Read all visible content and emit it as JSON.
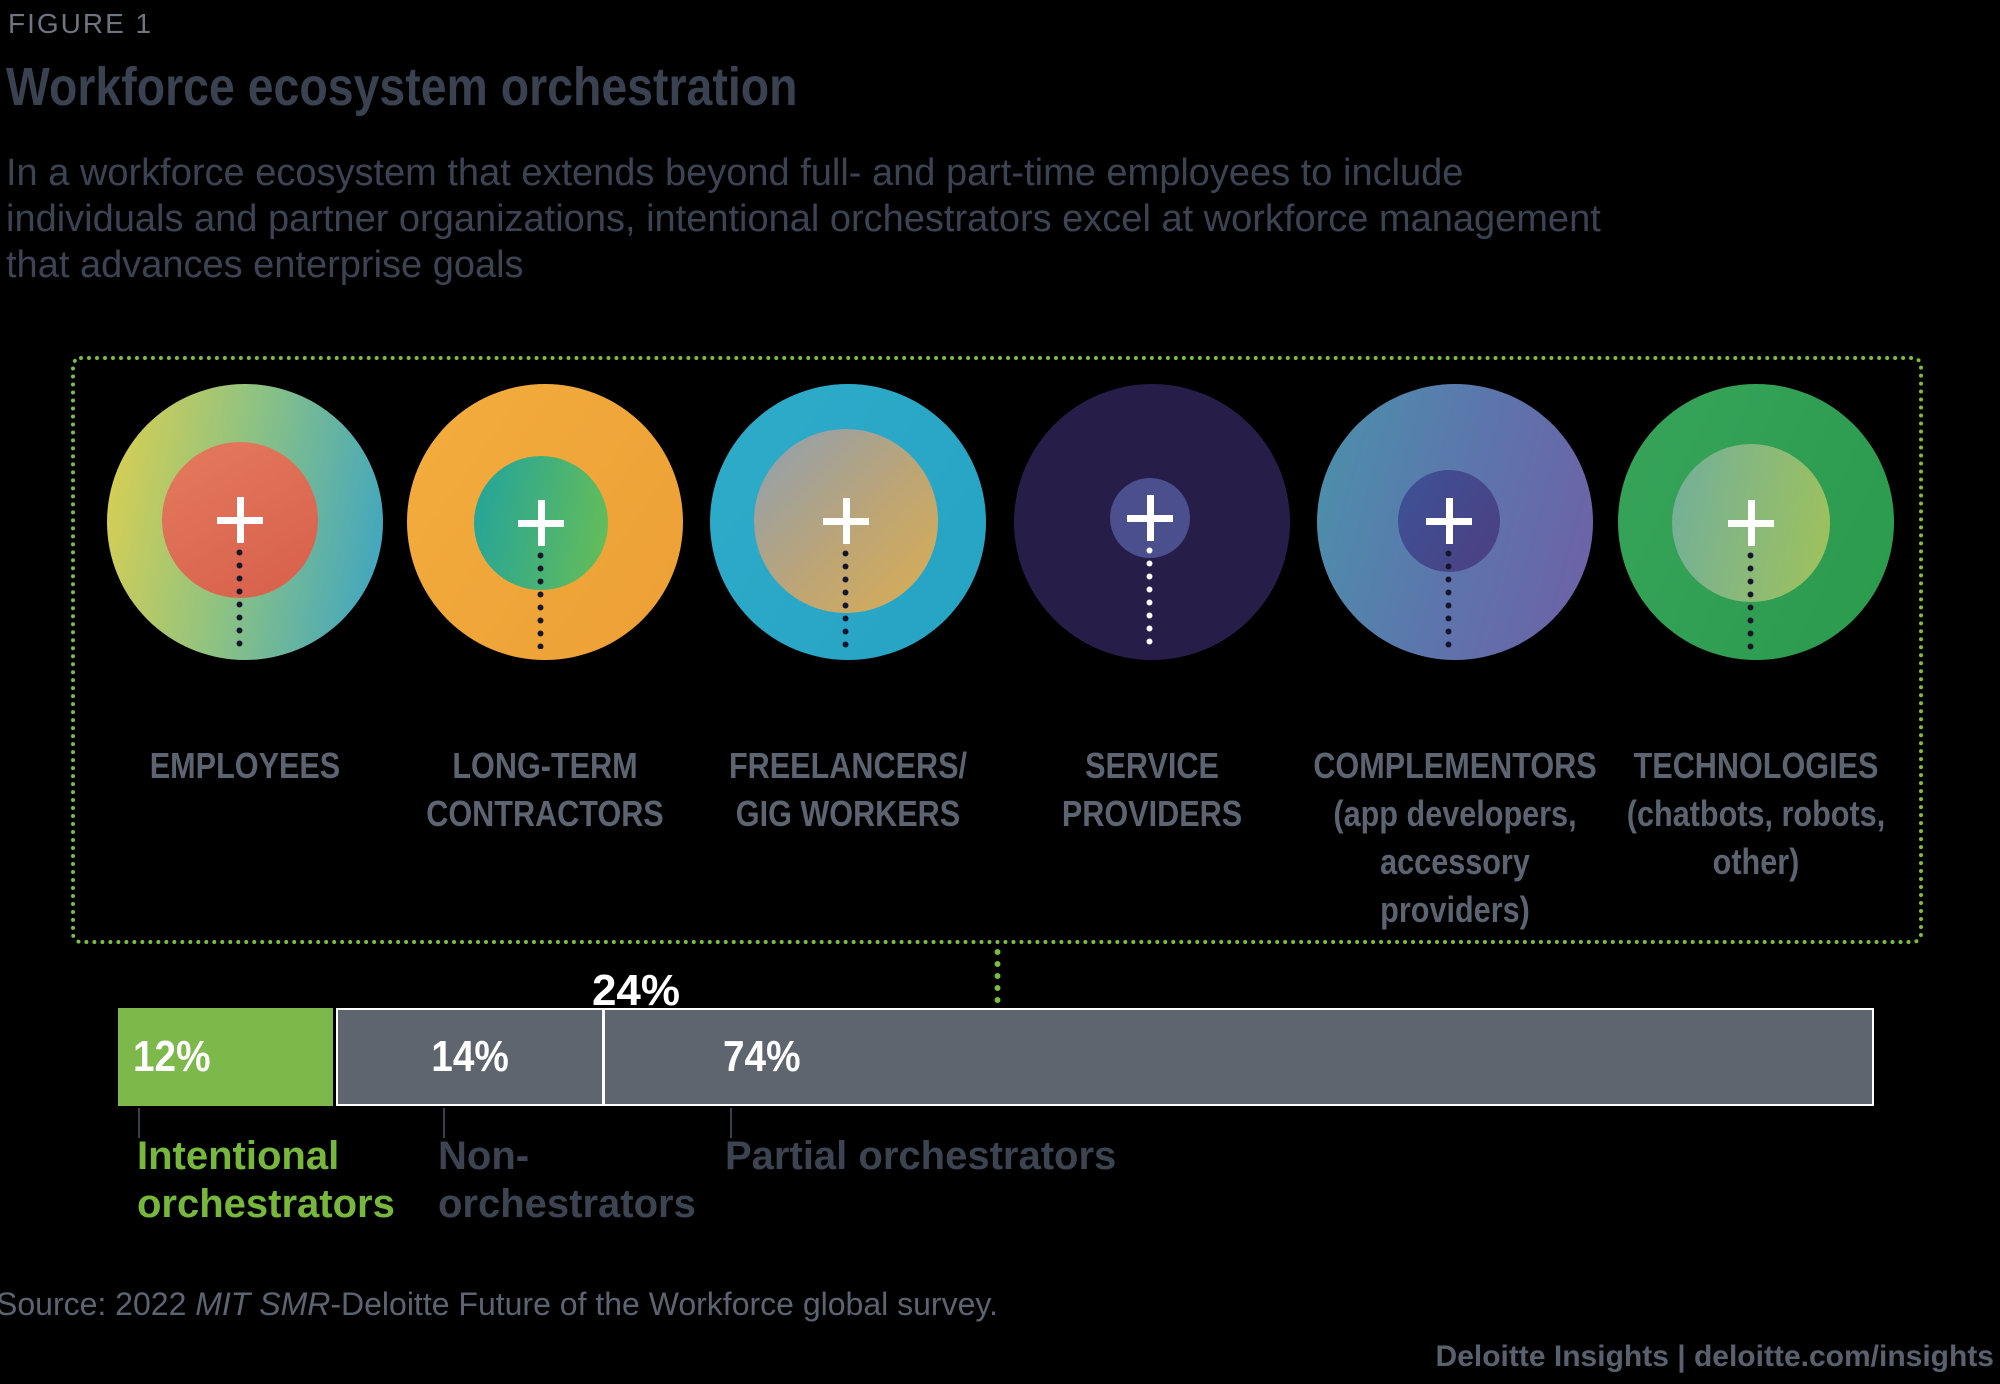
{
  "figure_label": "FIGURE 1",
  "title": "Workforce ecosystem orchestration",
  "subtitle_lines": [
    "In a workforce ecosystem that extends beyond full- and part-time employees to include",
    "individuals and partner organizations, intentional orchestrators excel at workforce management",
    "that advances enterprise goals"
  ],
  "colors": {
    "background": "#000000",
    "accent_green": "#7CBE40",
    "bar_green": "#7CB84A",
    "bar_gray": "#5F656E",
    "title_text": "#3A4150",
    "label_gray": "#5B6470",
    "dark_slate": "#3C4351",
    "white": "#FFFFFF"
  },
  "ecosystem": {
    "box_border_color": "#7CBE40",
    "circles": [
      {
        "id": "employees",
        "icon": "plus-icon",
        "label_lines": [
          "EMPLOYEES"
        ],
        "outer_colors": [
          "#DFD04E",
          "#8CC283",
          "#39A3C6"
        ],
        "inner_colors": [
          "#E47A5E",
          "#D75F4A"
        ]
      },
      {
        "id": "long-term-contractors",
        "icon": "plus-icon",
        "label_lines": [
          "LONG-TERM",
          "CONTRACTORS"
        ],
        "outer_colors": [
          "#F4AD3D",
          "#EC9F36"
        ],
        "inner_colors": [
          "#21A39C",
          "#68BE55"
        ]
      },
      {
        "id": "freelancers-gig-workers",
        "icon": "plus-icon",
        "label_lines": [
          "FREELANCERS/",
          "GIG WORKERS"
        ],
        "outer_colors": [
          "#2FACCA",
          "#26A2C3"
        ],
        "inner_colors": [
          "#92A0AE",
          "#D7AD56"
        ]
      },
      {
        "id": "service-providers",
        "icon": "plus-icon",
        "label_lines": [
          "SERVICE",
          "PROVIDERS"
        ],
        "outer_colors": [
          "#261D49"
        ],
        "inner_colors": [
          "#4B4F8E"
        ]
      },
      {
        "id": "complementors",
        "icon": "plus-icon",
        "label_lines": [
          "COMPLEMENTORS",
          "(app developers,",
          "accessory",
          "providers)"
        ],
        "outer_colors": [
          "#4A92AB",
          "#5E73AC",
          "#6F60A6"
        ],
        "inner_colors": [
          "#3D5298",
          "#4C3F80"
        ]
      },
      {
        "id": "technologies",
        "icon": "plus-icon",
        "label_lines": [
          "TECHNOLOGIES",
          "(chatbots, robots,",
          "other)"
        ],
        "outer_colors": [
          "#37A45A",
          "#2A9A4D"
        ],
        "inner_colors": [
          "#72AF9B",
          "#A0C25A"
        ]
      }
    ]
  },
  "chart_data": {
    "type": "bar",
    "stacked": true,
    "orientation": "horizontal",
    "unit": "%",
    "total": 100,
    "segments": [
      {
        "label": "Intentional orchestrators",
        "label_lines": [
          "Intentional",
          "orchestrators"
        ],
        "value": 12,
        "display": "12%",
        "color": "#7CB84A",
        "label_color": "#77B73C"
      },
      {
        "label": "Non-orchestrators",
        "label_lines": [
          "Non-",
          "orchestrators"
        ],
        "value": 14,
        "display": "14%",
        "color": "#5F656E",
        "label_color": "#3C4351"
      },
      {
        "label": "Partial orchestrators",
        "label_lines": [
          "Partial orchestrators"
        ],
        "value": 74,
        "display": "74%",
        "color": "#5F656E",
        "label_color": "#3C4351"
      }
    ],
    "annotation": {
      "text": "24%",
      "color": "#FFFFFF"
    },
    "value_label_color": "#FFFFFF",
    "legend": "none",
    "axes": "none",
    "title": ""
  },
  "source": {
    "prefix": "Source: 2022 ",
    "italic": "MIT SMR",
    "suffix": "-Deloitte Future of the Workforce global survey."
  },
  "footer": {
    "text": "Deloitte Insights | deloitte.com/insights"
  }
}
